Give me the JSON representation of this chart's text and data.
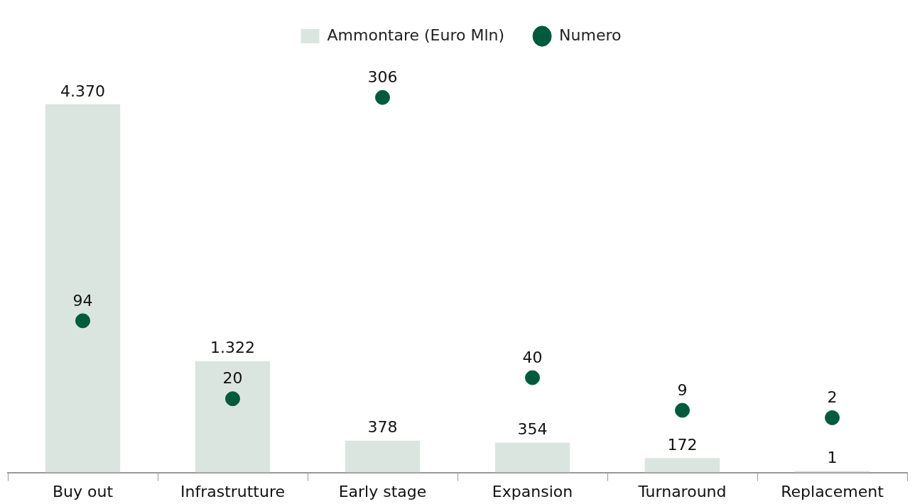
{
  "chart_data": {
    "type": "bar",
    "categories": [
      "Buy out",
      "Infrastrutture",
      "Early stage",
      "Expansion",
      "Turnaround",
      "Replacement"
    ],
    "series": [
      {
        "name": "Ammontare (Euro Mln)",
        "color": "#dbe5df",
        "values": [
          4370,
          1322,
          378,
          354,
          172,
          1
        ],
        "value_labels": [
          "4.370",
          "1.322",
          "378",
          "354",
          "172",
          "1"
        ]
      },
      {
        "name": "Numero",
        "type": "scatter",
        "axis": "y2",
        "color": "#005a3c",
        "marker": "circle",
        "values": [
          94,
          20,
          306,
          40,
          9,
          2
        ],
        "value_labels": [
          "94",
          "20",
          "306",
          "40",
          "9",
          "2"
        ]
      }
    ],
    "legend": "top",
    "grid": false,
    "tick_labels": "x"
  }
}
